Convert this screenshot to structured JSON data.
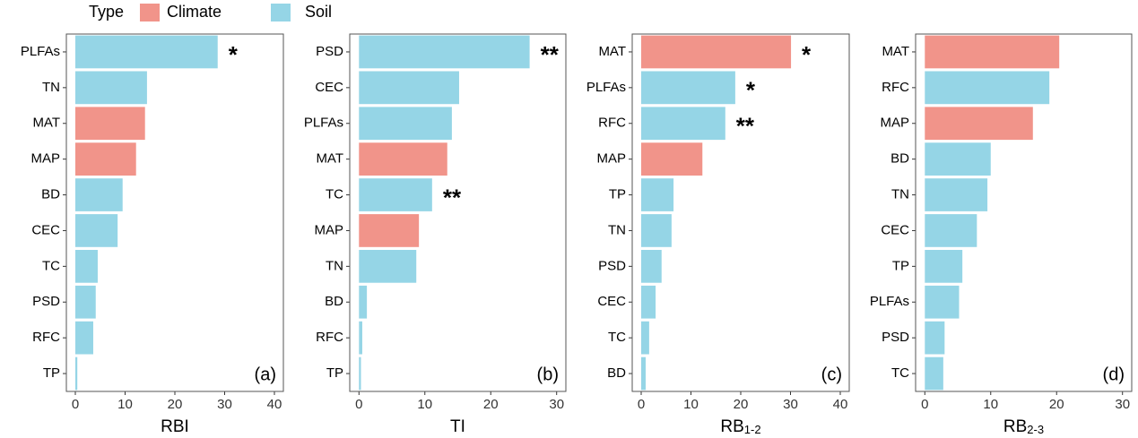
{
  "legend": {
    "title": "Type",
    "items": [
      {
        "name": "Climate",
        "color": "#f1948a"
      },
      {
        "name": "Soil",
        "color": "#95d5e6"
      }
    ]
  },
  "chart_data": [
    {
      "type": "bar",
      "orientation": "horizontal",
      "xlabel": "RBI",
      "panel_label": "(a)",
      "categories": [
        "PLFAs",
        "TN",
        "MAT",
        "MAP",
        "BD",
        "CEC",
        "TC",
        "PSD",
        "RFC",
        "TP"
      ],
      "values": [
        28.6,
        14.4,
        14.0,
        12.2,
        9.5,
        8.5,
        4.5,
        4.1,
        3.6,
        0.4
      ],
      "colors": [
        "#95d5e6",
        "#95d5e6",
        "#f1948a",
        "#f1948a",
        "#95d5e6",
        "#95d5e6",
        "#95d5e6",
        "#95d5e6",
        "#95d5e6",
        "#95d5e6"
      ],
      "annotations": [
        "*",
        null,
        null,
        null,
        null,
        null,
        null,
        null,
        null,
        null
      ],
      "xlim": [
        -1.8,
        41.8
      ],
      "xticks": [
        0,
        10,
        20,
        30,
        40
      ]
    },
    {
      "type": "bar",
      "orientation": "horizontal",
      "xlabel": "TI",
      "panel_label": "(b)",
      "categories": [
        "PSD",
        "CEC",
        "PLFAs",
        "MAT",
        "TC",
        "MAP",
        "TN",
        "BD",
        "RFC",
        "TP"
      ],
      "values": [
        25.9,
        15.2,
        14.1,
        13.4,
        11.1,
        9.1,
        8.7,
        1.2,
        0.5,
        0.3
      ],
      "colors": [
        "#95d5e6",
        "#95d5e6",
        "#95d5e6",
        "#f1948a",
        "#95d5e6",
        "#f1948a",
        "#95d5e6",
        "#95d5e6",
        "#95d5e6",
        "#95d5e6"
      ],
      "annotations": [
        "**",
        null,
        null,
        null,
        "**",
        null,
        null,
        null,
        null,
        null
      ],
      "xlim": [
        -1.4,
        31.4
      ],
      "xticks": [
        0,
        10,
        20,
        30
      ]
    },
    {
      "type": "bar",
      "orientation": "horizontal",
      "xlabel": "RB",
      "xlabel_sub": "1-2",
      "panel_label": "(c)",
      "categories": [
        "MAT",
        "PLFAs",
        "RFC",
        "MAP",
        "TP",
        "TN",
        "PSD",
        "CEC",
        "TC",
        "BD"
      ],
      "values": [
        30.1,
        18.9,
        16.9,
        12.3,
        6.5,
        6.1,
        4.1,
        2.9,
        1.6,
        0.9
      ],
      "colors": [
        "#f1948a",
        "#95d5e6",
        "#95d5e6",
        "#f1948a",
        "#95d5e6",
        "#95d5e6",
        "#95d5e6",
        "#95d5e6",
        "#95d5e6",
        "#95d5e6"
      ],
      "annotations": [
        "*",
        "*",
        "**",
        null,
        null,
        null,
        null,
        null,
        null,
        null
      ],
      "xlim": [
        -1.8,
        41.8
      ],
      "xticks": [
        0,
        10,
        20,
        30,
        40
      ]
    },
    {
      "type": "bar",
      "orientation": "horizontal",
      "xlabel": "RB",
      "xlabel_sub": "2-3",
      "panel_label": "(d)",
      "categories": [
        "MAT",
        "RFC",
        "MAP",
        "BD",
        "TN",
        "CEC",
        "TP",
        "PLFAs",
        "PSD",
        "TC"
      ],
      "values": [
        20.4,
        18.9,
        16.4,
        10.0,
        9.5,
        7.9,
        5.7,
        5.2,
        3.0,
        2.8
      ],
      "colors": [
        "#f1948a",
        "#95d5e6",
        "#f1948a",
        "#95d5e6",
        "#95d5e6",
        "#95d5e6",
        "#95d5e6",
        "#95d5e6",
        "#95d5e6",
        "#95d5e6"
      ],
      "annotations": [
        null,
        null,
        null,
        null,
        null,
        null,
        null,
        null,
        null,
        null
      ],
      "xlim": [
        -1.4,
        31.4
      ],
      "xticks": [
        0,
        10,
        20,
        30
      ]
    }
  ]
}
